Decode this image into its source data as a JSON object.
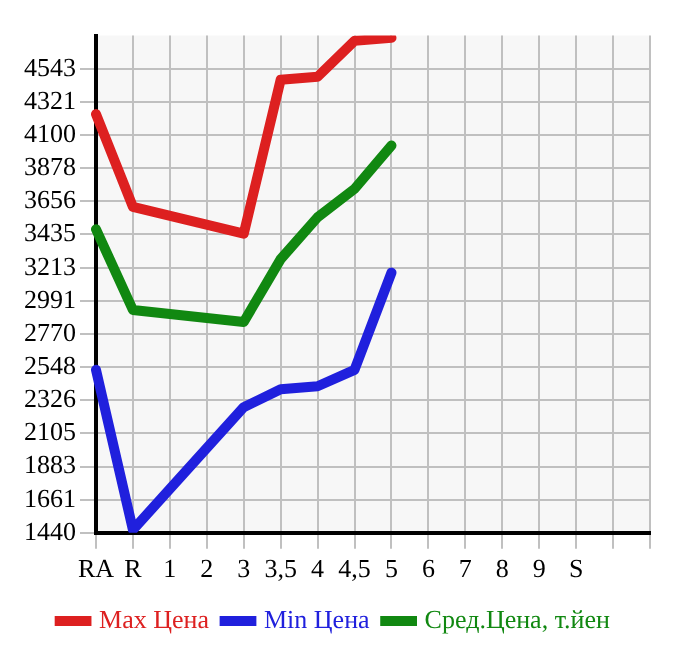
{
  "chart_data": {
    "type": "line",
    "categories": [
      "RA",
      "R",
      "1",
      "2",
      "3",
      "3,5",
      "4",
      "4,5",
      "5",
      "6",
      "7",
      "8",
      "9",
      "S",
      null,
      null
    ],
    "series": [
      {
        "name": "Max Цена",
        "color": "#dd2020",
        "values": [
          4240,
          3620,
          null,
          null,
          3440,
          4470,
          4490,
          4730,
          4750,
          null,
          null,
          null,
          null,
          null,
          null,
          null
        ]
      },
      {
        "name": "Min Цена",
        "color": "#2020dd",
        "values": [
          2530,
          1460,
          null,
          null,
          2280,
          2400,
          2420,
          2530,
          3180,
          null,
          null,
          null,
          null,
          null,
          null,
          null
        ]
      },
      {
        "name": "Сред.Цена, т.йен",
        "color": "#118811",
        "values": [
          3470,
          2930,
          null,
          null,
          2850,
          3270,
          3550,
          3740,
          4030,
          null,
          null,
          null,
          null,
          null,
          null,
          null
        ]
      }
    ],
    "ylim": [
      1440,
      4765
    ],
    "yticks": [
      1440,
      1661,
      1883,
      2105,
      2326,
      2548,
      2770,
      2991,
      3213,
      3435,
      3656,
      3878,
      4100,
      4321,
      4543
    ],
    "grid": true,
    "legend": "bottom",
    "marker": "none",
    "line_style": "solid"
  }
}
